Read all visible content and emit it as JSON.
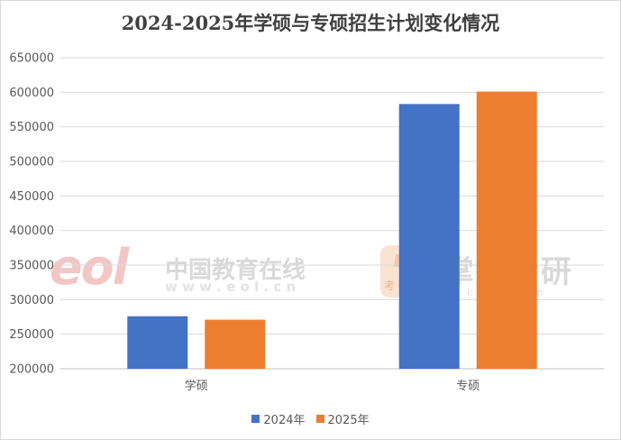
{
  "chart_data": {
    "type": "bar",
    "title": "2024-2025年学硕与专硕招生计划变化情况",
    "categories": [
      "学硕",
      "专硕"
    ],
    "series": [
      {
        "name": "2024年",
        "color": "#4472c4",
        "values": [
          276000,
          583000
        ]
      },
      {
        "name": "2025年",
        "color": "#ed7d31",
        "values": [
          271000,
          601000
        ]
      }
    ],
    "ylim": [
      200000,
      650000
    ],
    "ytick_step": 50000,
    "yticks": [
      "200000",
      "250000",
      "300000",
      "350000",
      "400000",
      "450000",
      "500000",
      "550000",
      "600000",
      "650000"
    ],
    "grid": true,
    "legend_position": "bottom"
  },
  "watermark": {
    "eol_logo": "eol",
    "eol_name": "中国教育在线",
    "eol_url": "w w w . e o l . c n",
    "kaoyan_name": "掌上考研",
    "kaoyan_badge": "考 研",
    "kaoyan_url": "k a o y a n . c n"
  }
}
